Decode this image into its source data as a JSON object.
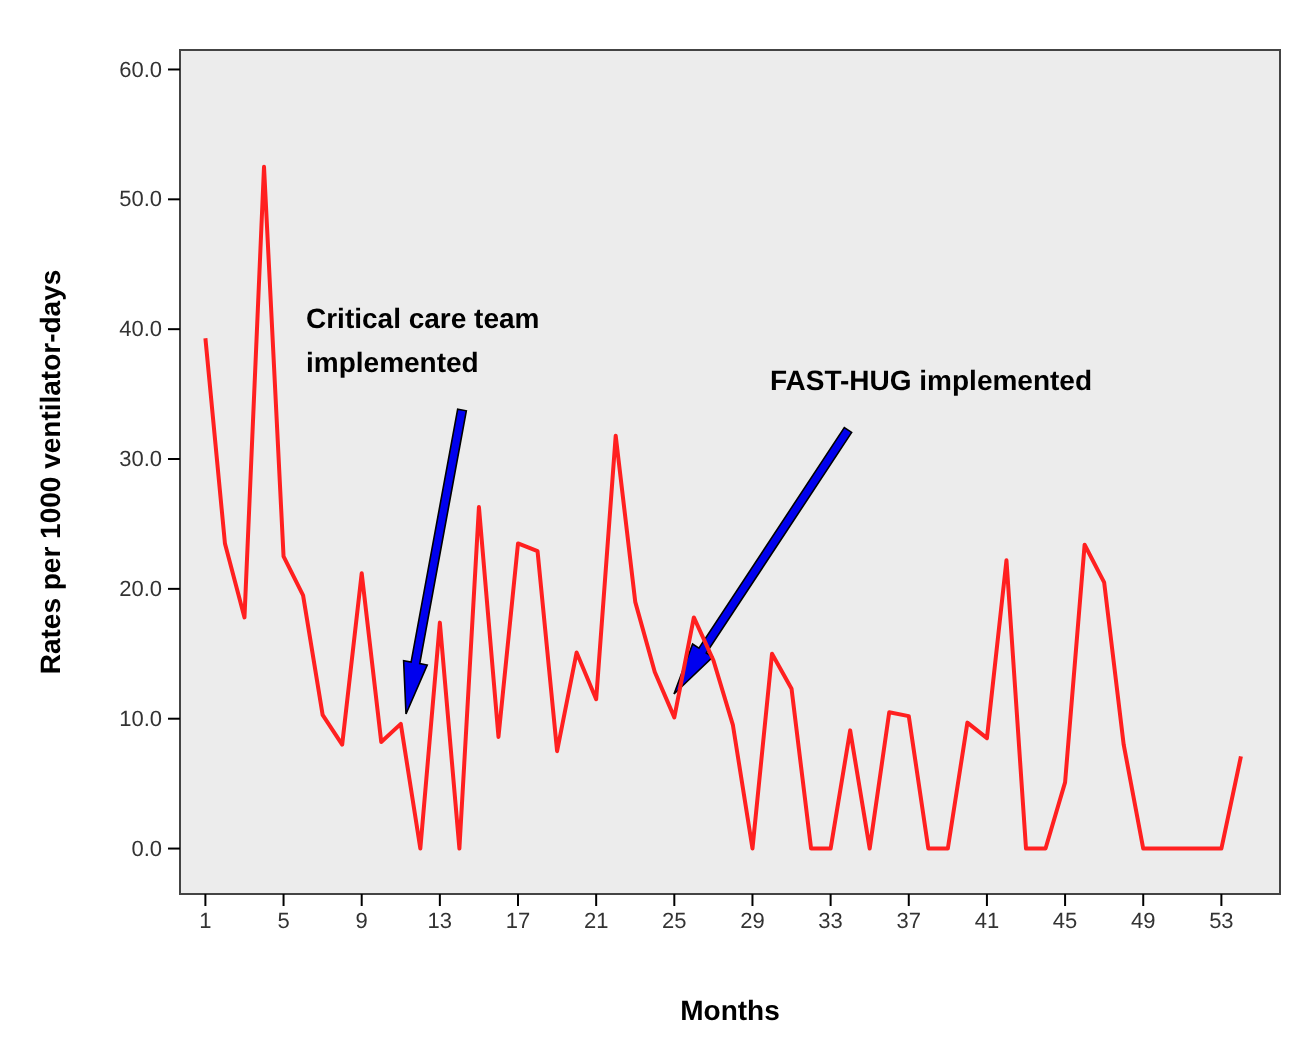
{
  "chart_data": {
    "type": "line",
    "xlabel": "Months",
    "ylabel": "Rates per 1000 ventilator-days",
    "x": [
      1,
      2,
      3,
      4,
      5,
      6,
      7,
      8,
      9,
      10,
      11,
      12,
      13,
      14,
      15,
      16,
      17,
      18,
      19,
      20,
      21,
      22,
      23,
      24,
      25,
      26,
      27,
      28,
      29,
      30,
      31,
      32,
      33,
      34,
      35,
      36,
      37,
      38,
      39,
      40,
      41,
      42,
      43,
      44,
      45,
      46,
      47,
      48,
      49,
      50,
      51,
      52,
      53,
      54
    ],
    "series": [
      {
        "color": "#ff2020",
        "values": [
          39.3,
          23.5,
          17.8,
          52.5,
          22.5,
          19.5,
          10.3,
          8.0,
          21.2,
          8.2,
          9.6,
          0,
          17.4,
          0,
          26.3,
          8.6,
          23.5,
          22.9,
          7.5,
          15.1,
          11.5,
          31.8,
          19.0,
          13.6,
          10.1,
          17.8,
          14.5,
          9.5,
          0,
          15.0,
          12.3,
          0,
          0,
          9.1,
          0,
          10.5,
          10.2,
          0,
          0,
          9.7,
          8.5,
          22.2,
          0,
          0,
          5.1,
          23.4,
          20.5,
          8.0,
          0,
          0,
          0,
          0,
          0,
          7.1
        ]
      }
    ],
    "xlim": [
      -0.3,
      56
    ],
    "xticks": [
      1,
      5,
      9,
      13,
      17,
      21,
      25,
      29,
      33,
      37,
      41,
      45,
      49,
      53
    ],
    "ylim": [
      -3.5,
      61.5
    ],
    "yticks": [
      {
        "value": 0,
        "label": "0.0"
      },
      {
        "value": 10,
        "label": "10.0"
      },
      {
        "value": 20,
        "label": "20.0"
      },
      {
        "value": 30,
        "label": "30.0"
      },
      {
        "value": 40,
        "label": "40.0"
      },
      {
        "value": 50,
        "label": "50.0"
      },
      {
        "value": 60,
        "label": "60.0"
      }
    ],
    "grid": false,
    "marker": "none",
    "line_style": "solid",
    "annotations": [
      "Critical care team implemented",
      "FAST-HUG implemented"
    ]
  }
}
